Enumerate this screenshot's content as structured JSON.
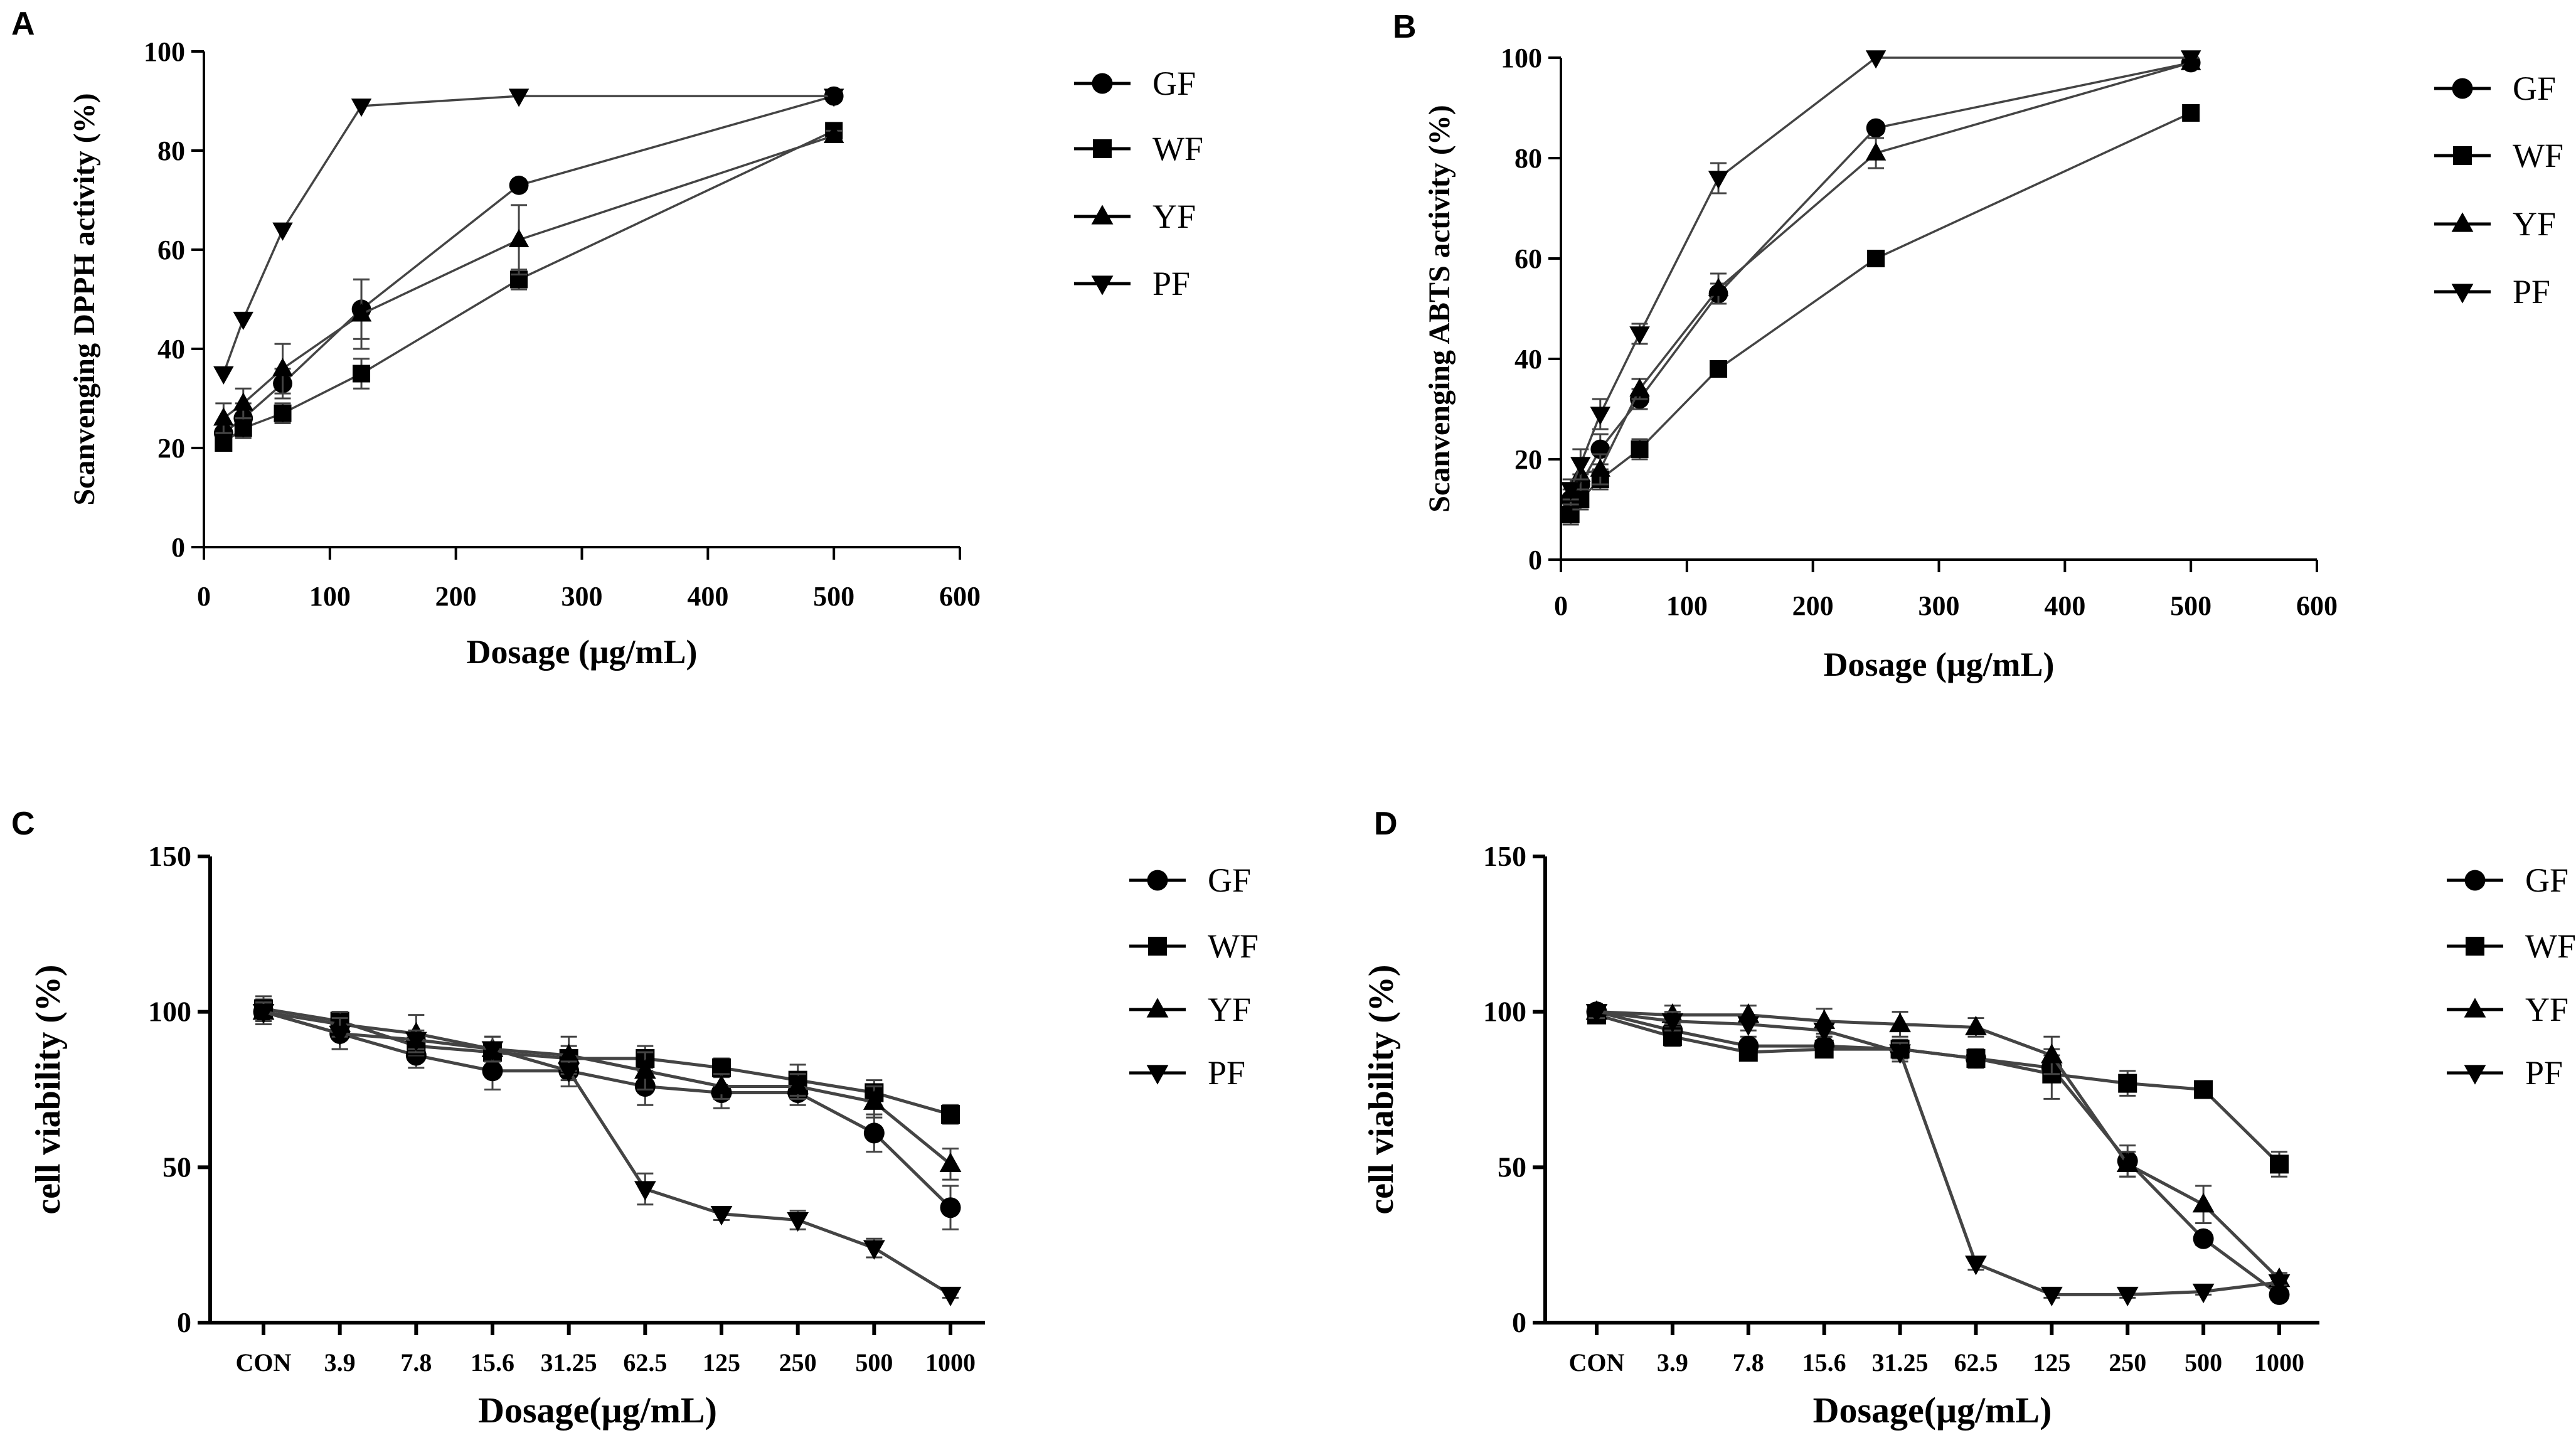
{
  "chart_data": [
    {
      "panel": "A",
      "type": "line",
      "xlabel": "Dosage (μg/mL)",
      "ylabel": "Scanvenging DPPH activity (%)",
      "xlim": [
        0,
        600
      ],
      "ylim": [
        0,
        100
      ],
      "xticks": [
        "0",
        "100",
        "200",
        "300",
        "400",
        "500",
        "600"
      ],
      "yticks": [
        "0",
        "20",
        "40",
        "60",
        "80",
        "100"
      ],
      "x": [
        15.6,
        31.25,
        62.5,
        125,
        250,
        500
      ],
      "series": [
        {
          "name": "GF",
          "marker": "circle",
          "values": [
            23,
            26,
            33,
            48,
            73,
            91
          ],
          "errors": [
            2,
            3,
            3,
            6,
            0,
            1
          ]
        },
        {
          "name": "WF",
          "marker": "square",
          "values": [
            21,
            24,
            27,
            35,
            54,
            84
          ],
          "errors": [
            1,
            2,
            2,
            3,
            2,
            1
          ]
        },
        {
          "name": "YF",
          "marker": "triangle-up",
          "values": [
            26,
            29,
            36,
            47,
            62,
            83
          ],
          "errors": [
            3,
            3,
            5,
            7,
            7,
            1
          ]
        },
        {
          "name": "PF",
          "marker": "triangle-down",
          "values": [
            35,
            46,
            64,
            89,
            91,
            91
          ],
          "errors": [
            0,
            0,
            0,
            0,
            0,
            0
          ]
        }
      ]
    },
    {
      "panel": "B",
      "type": "line",
      "xlabel": "Dosage (μg/mL)",
      "ylabel": "Scanvenging ABTS activity (%)",
      "xlim": [
        0,
        600
      ],
      "ylim": [
        0,
        100
      ],
      "xticks": [
        "0",
        "100",
        "200",
        "300",
        "400",
        "500",
        "600"
      ],
      "yticks": [
        "0",
        "20",
        "40",
        "60",
        "80",
        "100"
      ],
      "x": [
        7.8,
        15.6,
        31.25,
        62.5,
        125,
        250,
        500
      ],
      "series": [
        {
          "name": "GF",
          "marker": "circle",
          "values": [
            12,
            15,
            22,
            32,
            53,
            86,
            99
          ],
          "errors": [
            2,
            2,
            3,
            2,
            2,
            1,
            1
          ]
        },
        {
          "name": "WF",
          "marker": "square",
          "values": [
            9,
            12,
            16,
            22,
            38,
            60,
            89
          ],
          "errors": [
            2,
            2,
            2,
            2,
            1,
            1,
            1
          ]
        },
        {
          "name": "YF",
          "marker": "triangle-up",
          "values": [
            13,
            17,
            18,
            34,
            54,
            81,
            99
          ],
          "errors": [
            2,
            3,
            3,
            2,
            3,
            3,
            1
          ]
        },
        {
          "name": "PF",
          "marker": "triangle-down",
          "values": [
            14,
            19,
            29,
            45,
            76,
            100,
            100
          ],
          "errors": [
            2,
            3,
            3,
            2,
            3,
            0,
            0
          ]
        }
      ]
    },
    {
      "panel": "C",
      "type": "line",
      "xlabel": "Dosage(μg/mL)",
      "ylabel": "cell viability  (%)",
      "ylim": [
        0,
        150
      ],
      "yticks": [
        "0",
        "50",
        "100",
        "150"
      ],
      "categories": [
        "CON",
        "3.9",
        "7.8",
        "15.6",
        "31.25",
        "62.5",
        "125",
        "250",
        "500",
        "1000"
      ],
      "series": [
        {
          "name": "GF",
          "marker": "circle",
          "values": [
            100,
            93,
            86,
            81,
            81,
            76,
            74,
            74,
            61,
            37
          ],
          "errors": [
            4,
            5,
            4,
            6,
            5,
            6,
            5,
            4,
            6,
            7
          ]
        },
        {
          "name": "WF",
          "marker": "square",
          "values": [
            101,
            97,
            89,
            87,
            85,
            85,
            82,
            78,
            74,
            67
          ],
          "errors": [
            4,
            3,
            3,
            3,
            4,
            4,
            3,
            5,
            4,
            3
          ]
        },
        {
          "name": "YF",
          "marker": "triangle-up",
          "values": [
            100,
            96,
            93,
            88,
            86,
            81,
            76,
            76,
            71,
            51
          ],
          "errors": [
            3,
            4,
            6,
            4,
            6,
            6,
            4,
            4,
            5,
            5
          ]
        },
        {
          "name": "PF",
          "marker": "triangle-down",
          "values": [
            100,
            93,
            91,
            88,
            81,
            43,
            35,
            33,
            24,
            9
          ],
          "errors": [
            3,
            5,
            3,
            4,
            3,
            5,
            2,
            3,
            3,
            1
          ]
        }
      ]
    },
    {
      "panel": "D",
      "type": "line",
      "xlabel": "Dosage(μg/mL)",
      "ylabel": "cell viability  (%)",
      "ylim": [
        0,
        150
      ],
      "yticks": [
        "0",
        "50",
        "100",
        "150"
      ],
      "categories": [
        "CON",
        "3.9",
        "7.8",
        "15.6",
        "31.25",
        "62.5",
        "125",
        "250",
        "500",
        "1000"
      ],
      "series": [
        {
          "name": "GF",
          "marker": "circle",
          "values": [
            100,
            94,
            89,
            89,
            88,
            85,
            82,
            52,
            27,
            9
          ],
          "errors": [
            2,
            3,
            3,
            3,
            3,
            3,
            4,
            5,
            2,
            1
          ]
        },
        {
          "name": "WF",
          "marker": "square",
          "values": [
            99,
            92,
            87,
            88,
            88,
            85,
            80,
            77,
            75,
            51
          ],
          "errors": [
            2,
            3,
            2,
            2,
            3,
            3,
            8,
            4,
            2,
            4
          ]
        },
        {
          "name": "YF",
          "marker": "triangle-up",
          "values": [
            100,
            99,
            99,
            97,
            96,
            95,
            86,
            51,
            38,
            14
          ],
          "errors": [
            2,
            3,
            3,
            4,
            4,
            3,
            6,
            4,
            6,
            2
          ]
        },
        {
          "name": "PF",
          "marker": "triangle-down",
          "values": [
            100,
            97,
            96,
            94,
            87,
            19,
            9,
            9,
            10,
            13
          ],
          "errors": [
            2,
            3,
            2,
            2,
            3,
            2,
            1,
            1,
            1,
            1
          ]
        }
      ]
    }
  ]
}
